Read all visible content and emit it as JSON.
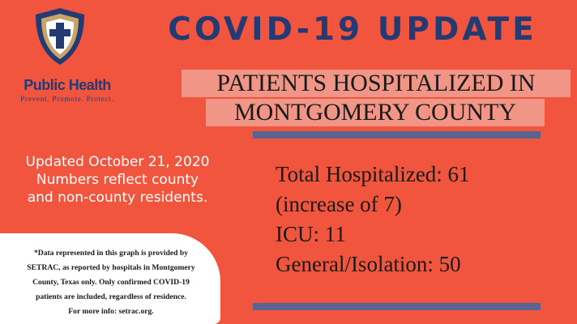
{
  "logo": {
    "icon": "cross-shield-icon",
    "name": "Public Health",
    "tagline": "Prevent. Promote. Protect.",
    "colors": {
      "navy": "#243a73",
      "gold": "#c9a468",
      "white": "#ffffff"
    }
  },
  "title": "COVID-19 UPDATE",
  "subtitle": {
    "line1": "PATIENTS HOSPITALIZED IN",
    "line2": "MONTGOMERY COUNTY"
  },
  "updated": {
    "line1": "Updated October 21, 2020",
    "line2": "Numbers reflect county",
    "line3": "and non-county residents."
  },
  "stats": {
    "total": "Total Hospitalized: 61",
    "increase": "(increase of 7)",
    "icu": "ICU: 11",
    "general": "General/Isolation: 50"
  },
  "note": {
    "line1": "*Data represented in this graph is provided by",
    "line2": "SETRAC, as reported by hospitals in Montgomery",
    "line3": "County, Texas only. Only confirmed COVID-19",
    "line4": "patients are included, regardless of residence.",
    "line5": "For more info: setrac.org."
  },
  "colors": {
    "background": "#f2553d",
    "title": "#243a73",
    "subtitle_highlight": "#f19686",
    "rule": "#5a6492"
  }
}
